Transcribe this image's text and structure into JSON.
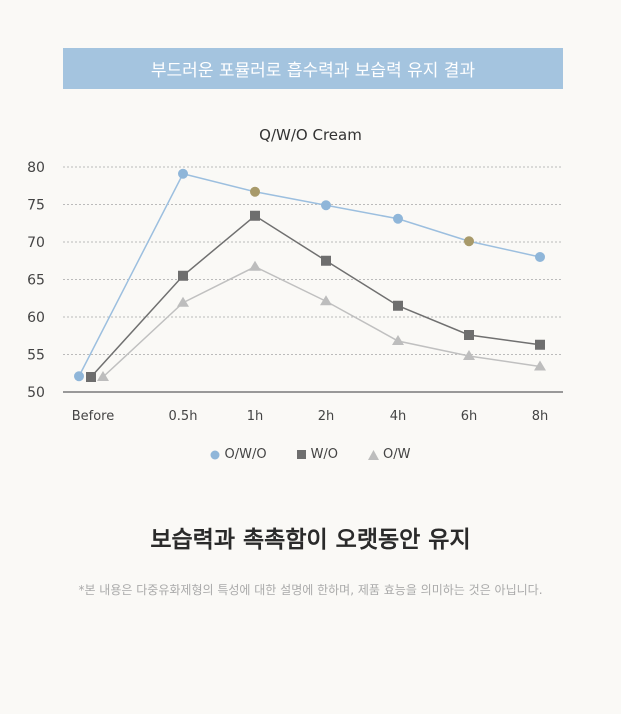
{
  "banner": "부드러운 포뮬러로 흡수력과 보습력 유지 결과",
  "subtitle": "보습력과 촉촉함이 오랫동안 유지",
  "note": "*본 내용은 다중유화제형의 특성에 대한 설명에 한하며, 제품 효능을 의미하는 것은 아닙니다.",
  "chart_data": {
    "type": "line",
    "title": "Q/W/O Cream",
    "categories": [
      "Before",
      "0.5h",
      "1h",
      "2h",
      "4h",
      "6h",
      "8h"
    ],
    "ylim": [
      50,
      80
    ],
    "yticks": [
      50,
      55,
      60,
      65,
      70,
      75,
      80
    ],
    "grid": true,
    "legend_position": "bottom",
    "highlight_color": "#a89a6a",
    "series": [
      {
        "name": "O/W/O",
        "marker": "circle",
        "color": "#8fb6d9",
        "line": "#9cbfdf",
        "values": [
          52.1,
          79.1,
          76.7,
          74.9,
          73.1,
          70.1,
          68.0
        ],
        "highlight": [
          2,
          5
        ]
      },
      {
        "name": "W/O",
        "marker": "square",
        "color": "#6e6e6e",
        "line": "#707070",
        "values": [
          52.0,
          65.5,
          73.5,
          67.5,
          61.5,
          57.6,
          56.3
        ],
        "highlight": []
      },
      {
        "name": "O/W",
        "marker": "triangle",
        "color": "#bdbdbd",
        "line": "#c0c0c0",
        "values": [
          52.0,
          61.9,
          66.7,
          62.1,
          56.8,
          54.8,
          53.4
        ],
        "highlight": []
      }
    ]
  }
}
